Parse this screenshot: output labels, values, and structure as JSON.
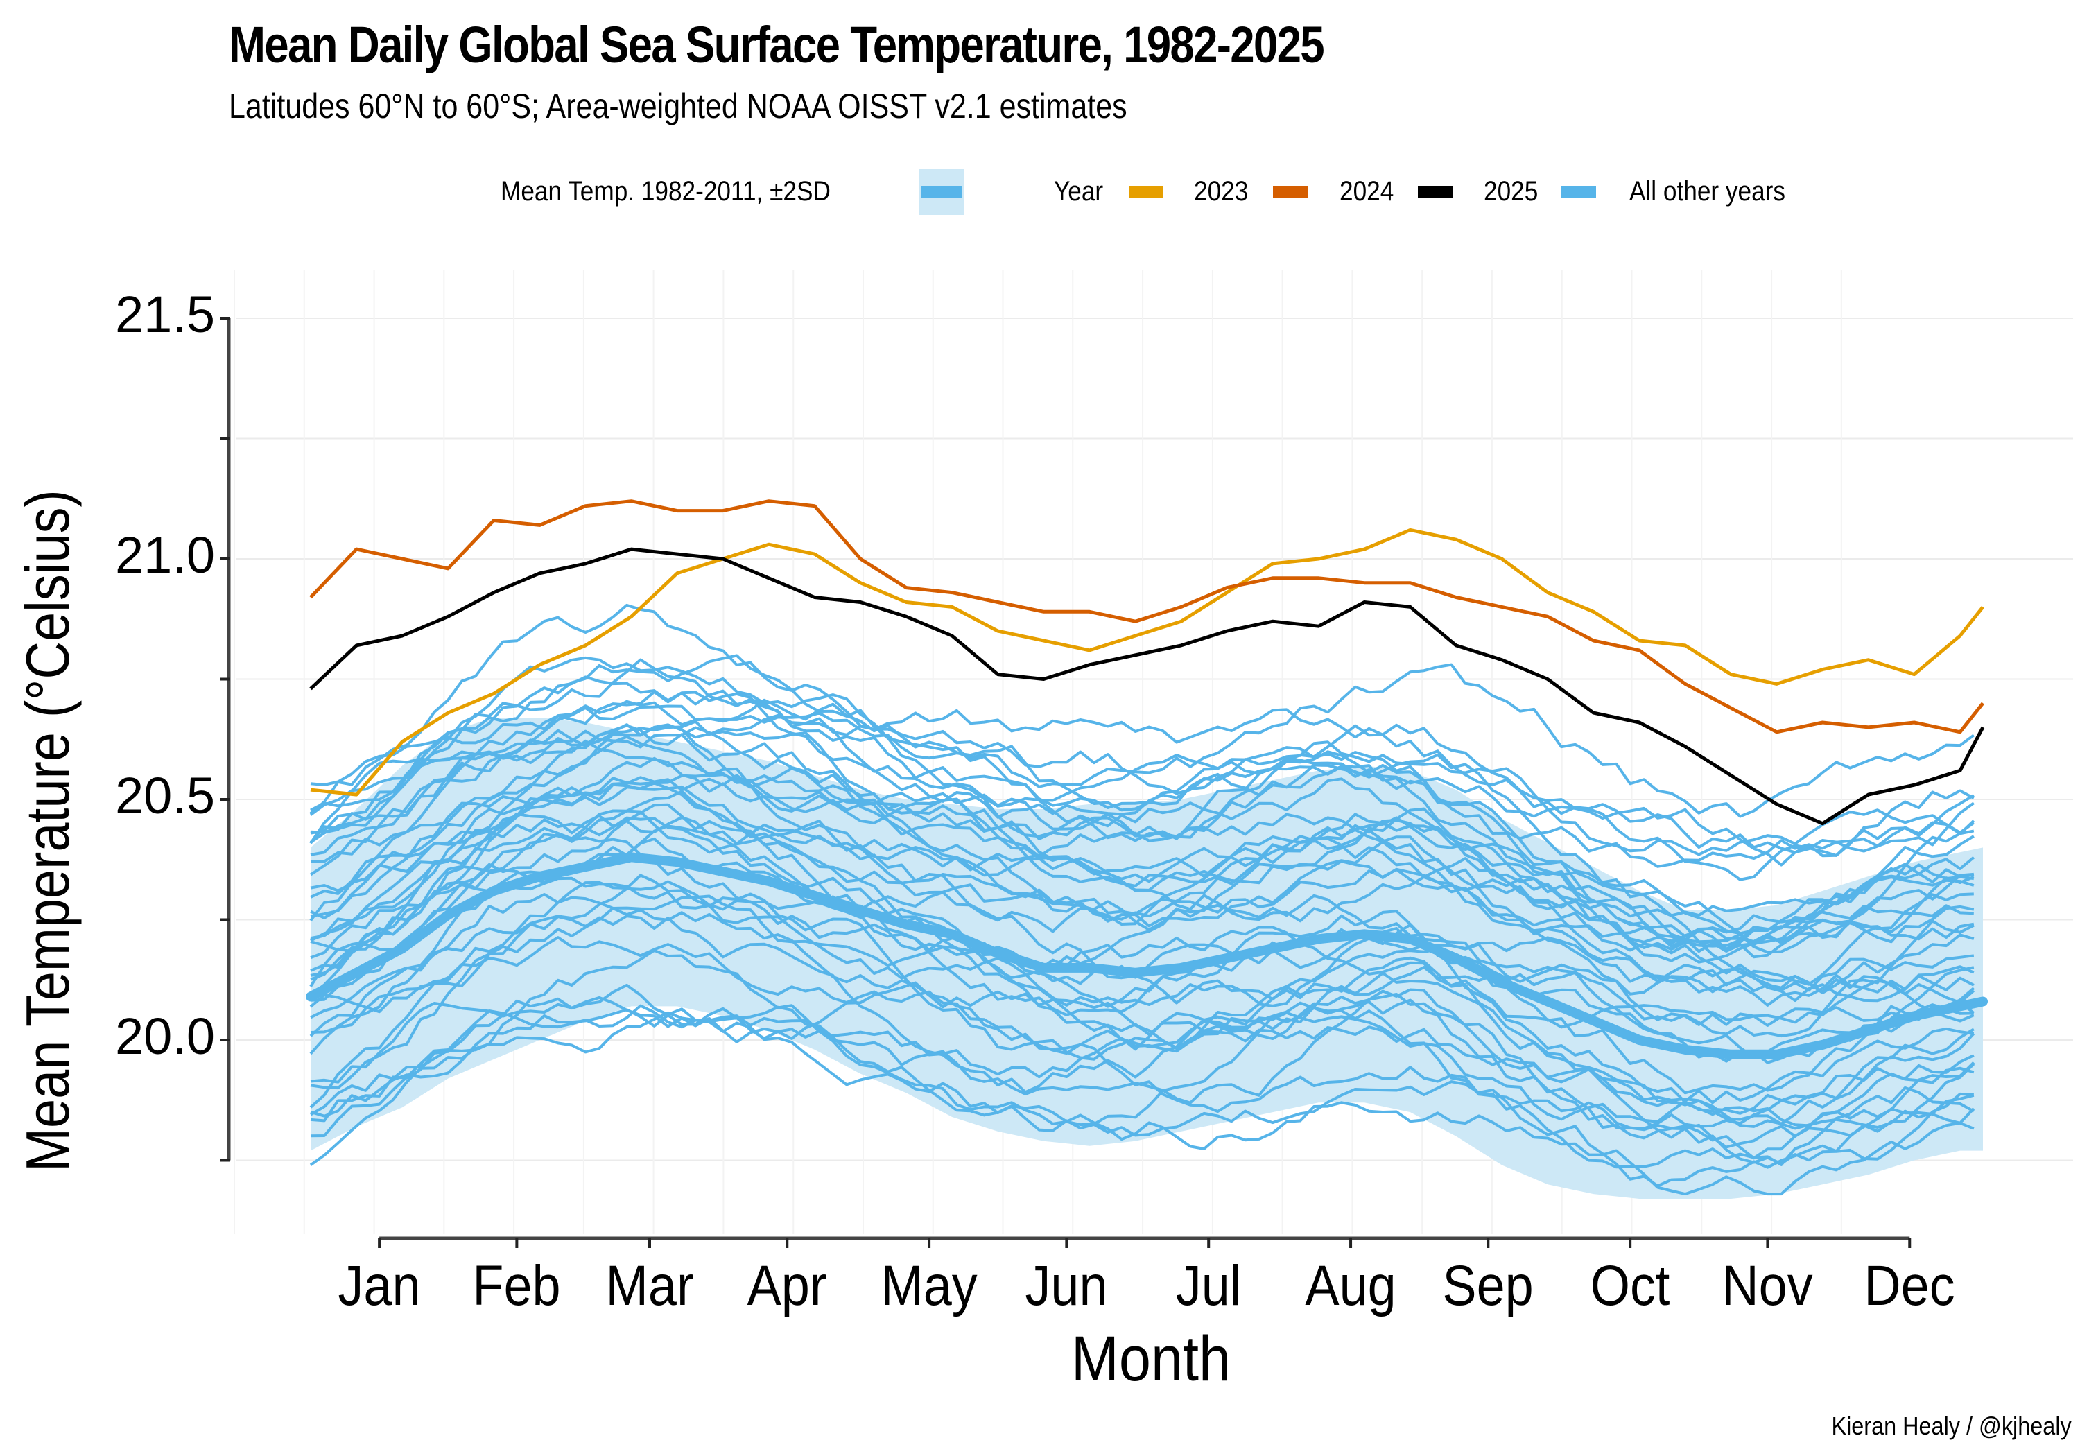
{
  "chart_data": {
    "type": "line",
    "title": "Mean Daily Global Sea Surface Temperature, 1982-2025",
    "subtitle": "Latitudes 60°N to 60°S; Area-weighted NOAA OISST v2.1 estimates",
    "xlabel": "Month",
    "ylabel": "Mean Temperature (°Celsius)",
    "caption": "Kieran Healy / @kjhealy",
    "x_unit": "day of year",
    "xlim": [
      1,
      366
    ],
    "ylim": [
      19.72,
      21.57
    ],
    "grid": true,
    "legend_position": "top",
    "x_ticks": [
      {
        "label": "Jan",
        "day": 16
      },
      {
        "label": "Feb",
        "day": 46
      },
      {
        "label": "Mar",
        "day": 75
      },
      {
        "label": "Apr",
        "day": 105
      },
      {
        "label": "May",
        "day": 136
      },
      {
        "label": "Jun",
        "day": 166
      },
      {
        "label": "Jul",
        "day": 197
      },
      {
        "label": "Aug",
        "day": 228
      },
      {
        "label": "Sep",
        "day": 258
      },
      {
        "label": "Oct",
        "day": 289
      },
      {
        "label": "Nov",
        "day": 319
      },
      {
        "label": "Dec",
        "day": 350
      }
    ],
    "y_ticks": [
      {
        "label": "20.0",
        "value": 20.0
      },
      {
        "label": "20.5",
        "value": 20.5
      },
      {
        "label": "21.0",
        "value": 21.0
      },
      {
        "label": "21.5",
        "value": 21.5
      }
    ],
    "y_minor_ticks": [
      19.75,
      20.25,
      20.75,
      21.25
    ],
    "legend": {
      "band_label": "Mean Temp. 1982-2011, ±2SD",
      "year_title": "Year",
      "entries": [
        {
          "label": "2023",
          "color": "#e69f00"
        },
        {
          "label": "2024",
          "color": "#d55e00"
        },
        {
          "label": "2025",
          "color": "#000000"
        },
        {
          "label": "All other years",
          "color": "#56b4e9"
        }
      ]
    },
    "colors": {
      "band": "#cde8f6",
      "mean": "#56b4e9",
      "other": "#56b4e9",
      "y2023": "#e69f00",
      "y2024": "#d55e00",
      "y2025": "#000000",
      "axis": "#444444",
      "grid": "#ebebeb"
    },
    "x_days": [
      1,
      11,
      21,
      31,
      41,
      51,
      61,
      71,
      81,
      91,
      101,
      111,
      121,
      131,
      141,
      151,
      161,
      171,
      181,
      191,
      201,
      211,
      221,
      231,
      241,
      251,
      261,
      271,
      281,
      291,
      301,
      311,
      321,
      331,
      341,
      351,
      361,
      366
    ],
    "climatology": {
      "name": "Mean Temp. 1982-2011",
      "mean": [
        20.09,
        20.14,
        20.19,
        20.26,
        20.31,
        20.34,
        20.36,
        20.38,
        20.37,
        20.35,
        20.33,
        20.3,
        20.27,
        20.24,
        20.22,
        20.18,
        20.15,
        20.15,
        20.14,
        20.15,
        20.17,
        20.19,
        20.21,
        20.22,
        20.21,
        20.17,
        20.12,
        20.08,
        20.04,
        20.0,
        19.98,
        19.97,
        19.97,
        19.99,
        20.02,
        20.05,
        20.07,
        20.08
      ],
      "upper": [
        20.4,
        20.48,
        20.57,
        20.64,
        20.67,
        20.67,
        20.66,
        20.64,
        20.62,
        20.6,
        20.58,
        20.55,
        20.52,
        20.5,
        20.49,
        20.48,
        20.48,
        20.49,
        20.49,
        20.5,
        20.52,
        20.54,
        20.56,
        20.57,
        20.56,
        20.52,
        20.46,
        20.41,
        20.36,
        20.31,
        20.27,
        20.27,
        20.28,
        20.31,
        20.34,
        20.37,
        20.39,
        20.4
      ],
      "lower": [
        19.77,
        19.82,
        19.86,
        19.92,
        19.96,
        20.0,
        20.04,
        20.07,
        20.07,
        20.05,
        20.02,
        19.98,
        19.93,
        19.89,
        19.84,
        19.81,
        19.79,
        19.78,
        19.79,
        19.81,
        19.83,
        19.85,
        19.87,
        19.87,
        19.85,
        19.8,
        19.74,
        19.7,
        19.68,
        19.67,
        19.67,
        19.67,
        19.68,
        19.7,
        19.72,
        19.75,
        19.77,
        19.77
      ]
    },
    "series": [
      {
        "name": "2023",
        "values": [
          20.52,
          20.51,
          20.62,
          20.68,
          20.72,
          20.78,
          20.82,
          20.88,
          20.97,
          21.0,
          21.03,
          21.01,
          20.95,
          20.91,
          20.9,
          20.85,
          20.83,
          20.81,
          20.84,
          20.87,
          20.93,
          20.99,
          21.0,
          21.02,
          21.06,
          21.04,
          21.0,
          20.93,
          20.89,
          20.83,
          20.82,
          20.76,
          20.74,
          20.77,
          20.79,
          20.76,
          20.84,
          20.9
        ]
      },
      {
        "name": "2024",
        "values": [
          20.92,
          21.02,
          21.0,
          20.98,
          21.08,
          21.07,
          21.11,
          21.12,
          21.1,
          21.1,
          21.12,
          21.11,
          21.0,
          20.94,
          20.93,
          20.91,
          20.89,
          20.89,
          20.87,
          20.9,
          20.94,
          20.96,
          20.96,
          20.95,
          20.95,
          20.92,
          20.9,
          20.88,
          20.83,
          20.81,
          20.74,
          20.69,
          20.64,
          20.66,
          20.65,
          20.66,
          20.64,
          20.7
        ]
      },
      {
        "name": "2025",
        "values": [
          20.73,
          20.82,
          20.84,
          20.88,
          20.93,
          20.97,
          20.99,
          21.02,
          21.01,
          21.0,
          20.96,
          20.92,
          20.91,
          20.88,
          20.84,
          20.76,
          20.75,
          20.78,
          20.8,
          20.82,
          20.85,
          20.87,
          20.86,
          20.91,
          20.9,
          20.82,
          20.79,
          20.75,
          20.68,
          20.66,
          20.61,
          20.55,
          20.49,
          20.45,
          20.51,
          20.53,
          20.56,
          20.65
        ]
      }
    ],
    "other_years": {
      "name": "All other years",
      "count": 41,
      "year_range": "1982-2022",
      "note": "41 daily series, each spanning roughly 19.7 to 20.95 °C; starts between 19.82 and 20.68 in January, ends between 19.82 and 20.66 in December."
    }
  }
}
